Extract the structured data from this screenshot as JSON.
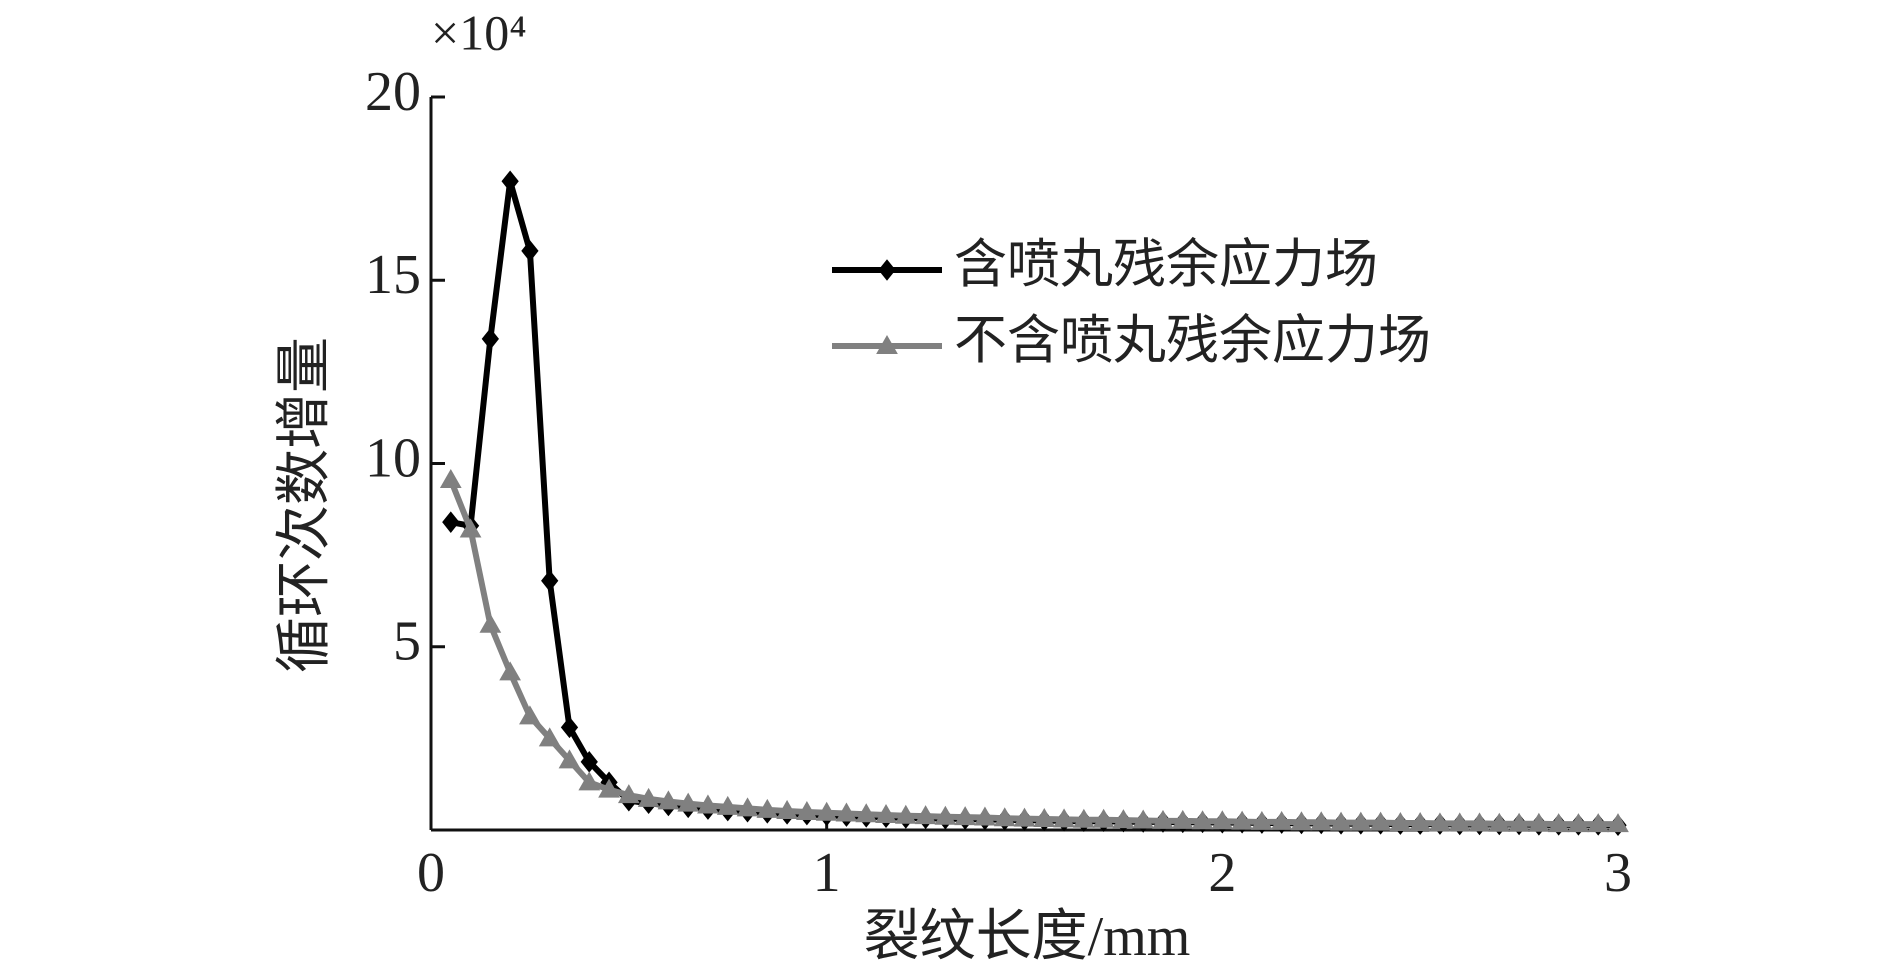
{
  "chart_data": {
    "type": "line",
    "y_label": "循环次数增量",
    "x_label": "裂纹长度/mm",
    "y_multiplier": "×10⁴",
    "x": [
      0.05,
      0.1,
      0.15,
      0.2,
      0.25,
      0.3,
      0.35,
      0.4,
      0.45,
      0.5,
      0.55,
      0.6,
      0.65,
      0.7,
      0.75,
      0.8,
      0.85,
      0.9,
      0.95,
      1.0,
      1.05,
      1.1,
      1.15,
      1.2,
      1.25,
      1.3,
      1.35,
      1.4,
      1.45,
      1.5,
      1.55,
      1.6,
      1.65,
      1.7,
      1.75,
      1.8,
      1.85,
      1.9,
      1.95,
      2.0,
      2.05,
      2.1,
      2.15,
      2.2,
      2.25,
      2.3,
      2.35,
      2.4,
      2.45,
      2.5,
      2.55,
      2.6,
      2.65,
      2.7,
      2.75,
      2.8,
      2.85,
      2.9,
      2.95,
      3.0
    ],
    "series": [
      {
        "name": "含喷丸残余应力场",
        "color": "#000000",
        "marker": "diamond",
        "values": [
          8.4,
          8.3,
          13.4,
          17.7,
          15.8,
          6.8,
          2.8,
          1.86,
          1.3,
          0.8,
          0.73,
          0.67,
          0.62,
          0.57,
          0.53,
          0.5,
          0.47,
          0.44,
          0.42,
          0.4,
          0.38,
          0.36,
          0.35,
          0.33,
          0.32,
          0.31,
          0.3,
          0.29,
          0.28,
          0.27,
          0.26,
          0.25,
          0.24,
          0.24,
          0.23,
          0.22,
          0.22,
          0.21,
          0.21,
          0.2,
          0.2,
          0.19,
          0.19,
          0.18,
          0.18,
          0.17,
          0.17,
          0.17,
          0.16,
          0.16,
          0.16,
          0.15,
          0.15,
          0.15,
          0.15,
          0.14,
          0.14,
          0.14,
          0.14,
          0.13
        ]
      },
      {
        "name": "不含喷丸残余应力场",
        "color": "#808080",
        "marker": "triangle",
        "values": [
          9.55,
          8.2,
          5.6,
          4.3,
          3.1,
          2.5,
          1.9,
          1.3,
          1.1,
          0.95,
          0.85,
          0.78,
          0.72,
          0.67,
          0.63,
          0.59,
          0.55,
          0.52,
          0.49,
          0.47,
          0.45,
          0.43,
          0.41,
          0.39,
          0.38,
          0.36,
          0.35,
          0.34,
          0.32,
          0.31,
          0.3,
          0.29,
          0.28,
          0.28,
          0.27,
          0.26,
          0.25,
          0.25,
          0.24,
          0.24,
          0.23,
          0.22,
          0.22,
          0.21,
          0.21,
          0.2,
          0.2,
          0.2,
          0.19,
          0.19,
          0.18,
          0.18,
          0.18,
          0.17,
          0.17,
          0.17,
          0.16,
          0.16,
          0.16,
          0.16
        ]
      }
    ],
    "xlim": [
      0,
      3
    ],
    "xticks": [
      0,
      1,
      2,
      3
    ],
    "ylim": [
      0,
      20
    ],
    "yticks": [
      5,
      10,
      15,
      20
    ]
  }
}
